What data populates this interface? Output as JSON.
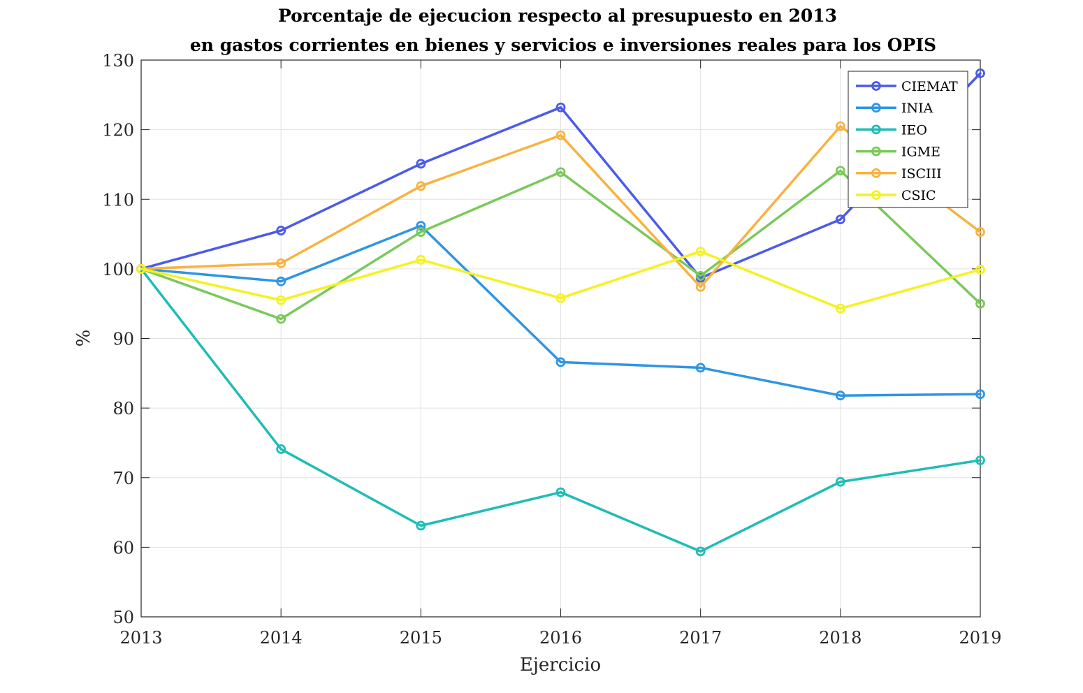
{
  "chart_data": {
    "type": "line",
    "title": [
      "Porcentaje de ejecucion respecto al presupuesto en 2013",
      "en gastos corrientes en bienes y servicios e inversiones reales para los OPIS"
    ],
    "xlabel": "Ejercicio",
    "ylabel": "%",
    "x": [
      2013,
      2014,
      2015,
      2016,
      2017,
      2018,
      2019
    ],
    "xlim": [
      2013,
      2019
    ],
    "ylim": [
      50,
      130
    ],
    "yticks": [
      50,
      60,
      70,
      80,
      90,
      100,
      110,
      120,
      130
    ],
    "grid": true,
    "legend_position": "top-right",
    "series": [
      {
        "name": "CIEMAT",
        "color": "#4b5be8",
        "values": [
          100,
          105.5,
          115.1,
          123.2,
          98.7,
          107.1,
          128.1
        ]
      },
      {
        "name": "INIA",
        "color": "#2e95e3",
        "values": [
          100,
          98.2,
          106.2,
          86.6,
          85.8,
          81.8,
          82.0
        ]
      },
      {
        "name": "IEO",
        "color": "#1fbcb7",
        "values": [
          100,
          74.1,
          63.1,
          67.9,
          59.4,
          69.4,
          72.5
        ]
      },
      {
        "name": "IGME",
        "color": "#7ac95a",
        "values": [
          100,
          92.8,
          105.3,
          113.9,
          99.0,
          114.1,
          95.0
        ]
      },
      {
        "name": "ISCIII",
        "color": "#f9b23f",
        "values": [
          100,
          100.8,
          111.9,
          119.2,
          97.4,
          120.5,
          105.3
        ]
      },
      {
        "name": "CSIC",
        "color": "#f4f220",
        "values": [
          100,
          95.5,
          101.3,
          95.8,
          102.5,
          94.3,
          99.9
        ]
      }
    ]
  }
}
